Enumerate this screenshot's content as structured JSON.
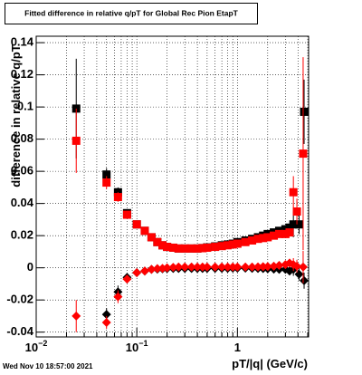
{
  "chart_data": {
    "type": "scatter",
    "title": "Fitted difference in relative q/pT for Global Rec Pion EtapT",
    "x_label": "pT/|q| (GeV/c)",
    "y_label": "difference in relative q/pT",
    "timestamp": "Wed Nov 10 18:57:00 2021",
    "log_x": true,
    "grid": true,
    "xlim": [
      0.01,
      5.1
    ],
    "ylim": [
      -0.043,
      0.144
    ],
    "xticks": [
      {
        "value": 0.01,
        "label": "10",
        "exponent": "−2"
      },
      {
        "value": 0.1,
        "label": "10",
        "exponent": "−1"
      },
      1
    ],
    "xminor_ticks": [
      0.02,
      0.03,
      0.04,
      0.05,
      0.06,
      0.07,
      0.08,
      0.09,
      0.2,
      0.3,
      0.4,
      0.5,
      0.6,
      0.7,
      0.8,
      0.9,
      2,
      3,
      4,
      5
    ],
    "yticks": [
      -0.04,
      -0.02,
      0,
      0.02,
      0.04,
      0.06,
      0.08,
      0.1,
      0.12,
      0.14
    ],
    "series": [
      {
        "color": "#000000",
        "marker": "square",
        "x": [
          0.025,
          0.05,
          0.065,
          0.08,
          0.1,
          0.12,
          0.14,
          0.16,
          0.18,
          0.2,
          0.23,
          0.26,
          0.3,
          0.35,
          0.4,
          0.45,
          0.5,
          0.6,
          0.7,
          0.8,
          0.9,
          1.0,
          1.2,
          1.4,
          1.6,
          1.8,
          2.0,
          2.3,
          2.6,
          3.0,
          3.3,
          3.6,
          4.1,
          4.6
        ],
        "values": [
          0.099,
          0.058,
          0.047,
          0.034,
          0.027,
          0.023,
          0.019,
          0.016,
          0.014,
          0.013,
          0.0125,
          0.012,
          0.012,
          0.012,
          0.012,
          0.0123,
          0.0127,
          0.0133,
          0.014,
          0.0145,
          0.015,
          0.016,
          0.017,
          0.018,
          0.019,
          0.02,
          0.021,
          0.022,
          0.023,
          0.024,
          0.025,
          0.027,
          0.027,
          0.097
        ],
        "yerr": [
          0.031,
          0.004,
          0.003,
          null,
          null,
          null,
          null,
          null,
          null,
          null,
          null,
          null,
          null,
          null,
          null,
          null,
          null,
          null,
          null,
          null,
          null,
          null,
          null,
          null,
          null,
          null,
          null,
          null,
          null,
          null,
          null,
          0.008,
          0.006,
          0.02
        ]
      },
      {
        "color": "#ff0000",
        "marker": "square",
        "x": [
          0.025,
          0.05,
          0.065,
          0.08,
          0.1,
          0.12,
          0.14,
          0.16,
          0.18,
          0.2,
          0.23,
          0.26,
          0.3,
          0.35,
          0.4,
          0.45,
          0.5,
          0.6,
          0.7,
          0.8,
          0.9,
          1.0,
          1.2,
          1.4,
          1.6,
          1.8,
          2.0,
          2.3,
          2.6,
          3.0,
          3.3,
          3.6,
          3.9,
          4.5
        ],
        "values": [
          0.079,
          0.053,
          0.044,
          0.033,
          0.027,
          0.023,
          0.019,
          0.016,
          0.014,
          0.013,
          0.0125,
          0.012,
          0.012,
          0.012,
          0.012,
          0.0122,
          0.0125,
          0.013,
          0.0135,
          0.014,
          0.0145,
          0.015,
          0.016,
          0.017,
          0.018,
          0.0185,
          0.019,
          0.02,
          0.021,
          0.021,
          0.022,
          0.047,
          0.035,
          0.071
        ],
        "yerr": [
          0.02,
          0.004,
          0.003,
          null,
          null,
          null,
          null,
          null,
          null,
          null,
          null,
          null,
          null,
          null,
          null,
          null,
          null,
          null,
          null,
          null,
          null,
          null,
          null,
          null,
          null,
          null,
          null,
          null,
          null,
          null,
          null,
          0.01,
          0.008,
          0.06
        ]
      },
      {
        "color": "#000000",
        "marker": "diamond",
        "x": [
          0.05,
          0.065,
          0.08,
          0.1,
          0.12,
          0.14,
          0.16,
          0.18,
          0.2,
          0.23,
          0.26,
          0.3,
          0.35,
          0.4,
          0.45,
          0.5,
          0.6,
          0.7,
          0.8,
          0.9,
          1.0,
          1.2,
          1.4,
          1.6,
          1.8,
          2.0,
          2.3,
          2.6,
          3.0,
          3.3,
          3.6,
          4.1,
          4.6
        ],
        "values": [
          -0.029,
          -0.015,
          -0.006,
          -0.003,
          -0.002,
          -0.001,
          -0.0008,
          -0.0006,
          -0.0005,
          -0.0004,
          -0.0004,
          -0.0004,
          -0.0004,
          -0.0004,
          -0.0004,
          -0.0004,
          -0.0003,
          -0.0003,
          -0.0003,
          -0.0002,
          -0.0002,
          -0.0002,
          -0.0003,
          -0.0004,
          -0.0005,
          -0.0006,
          -0.0008,
          -0.001,
          -0.001,
          -0.002,
          -0.001,
          -0.004,
          -0.008
        ],
        "yerr": [
          0.004,
          0.004,
          null,
          null,
          null,
          null,
          null,
          null,
          null,
          null,
          null,
          null,
          null,
          null,
          null,
          null,
          null,
          null,
          null,
          null,
          null,
          null,
          null,
          null,
          null,
          null,
          null,
          null,
          null,
          null,
          0.004,
          0.004,
          0.005
        ]
      },
      {
        "color": "#ff0000",
        "marker": "diamond",
        "x": [
          0.025,
          0.05,
          0.065,
          0.08,
          0.1,
          0.12,
          0.14,
          0.16,
          0.18,
          0.2,
          0.23,
          0.26,
          0.3,
          0.35,
          0.4,
          0.45,
          0.5,
          0.6,
          0.7,
          0.8,
          0.9,
          1.0,
          1.2,
          1.4,
          1.6,
          1.8,
          2.0,
          2.3,
          2.6,
          3.0,
          3.3,
          3.6,
          3.9,
          4.5
        ],
        "values": [
          -0.03,
          -0.034,
          -0.018,
          -0.007,
          -0.003,
          -0.002,
          -0.001,
          -0.0005,
          -0.0003,
          0,
          0.0003,
          0.0005,
          0.0005,
          0.0005,
          0.0005,
          0.0005,
          0.0005,
          0.0005,
          0.0005,
          0.0005,
          0.0005,
          0.0005,
          0.0005,
          0.0005,
          0.0006,
          0.0007,
          0.0008,
          0.001,
          0.0015,
          0.002,
          0.003,
          0.002,
          0.001,
          0.0005
        ],
        "yerr": [
          0.01,
          0.004,
          0.004,
          null,
          null,
          null,
          null,
          null,
          null,
          null,
          null,
          null,
          null,
          null,
          null,
          null,
          null,
          null,
          null,
          null,
          null,
          null,
          null,
          null,
          null,
          null,
          null,
          null,
          null,
          null,
          null,
          0.004,
          0.004,
          0.01
        ]
      }
    ]
  }
}
